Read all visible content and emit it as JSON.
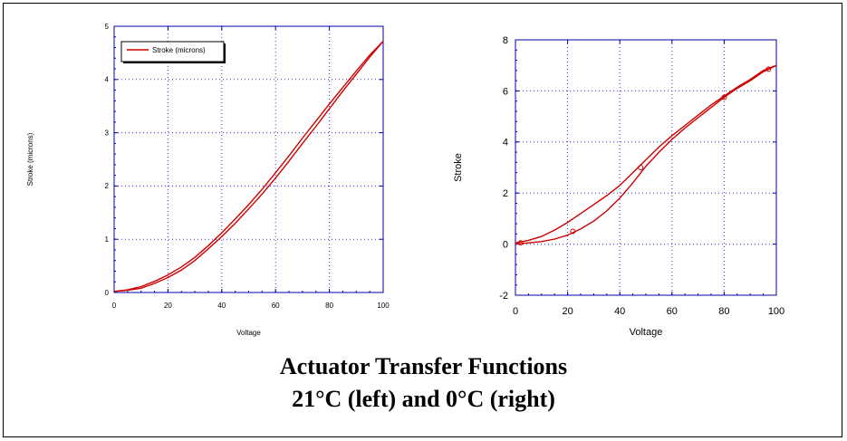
{
  "caption": {
    "line1": "Actuator Transfer Functions",
    "line2": "21°C (left) and 0°C (right)"
  },
  "colors": {
    "curve": "#cc0000",
    "grid": "#3333cc",
    "frame": "#0000aa"
  },
  "chart_data": [
    {
      "type": "line",
      "xlabel": "Voltage",
      "ylabel": "Stroke (microns)",
      "xlim": [
        0,
        100
      ],
      "ylim": [
        0,
        5
      ],
      "xticks": [
        "0",
        "20",
        "40",
        "60",
        "80",
        "100"
      ],
      "yticks": [
        "0",
        "1",
        "2",
        "3",
        "4",
        "5"
      ],
      "grid": true,
      "legend": {
        "position": "top-left",
        "entries": [
          "Stroke (microns)"
        ]
      },
      "series": [
        {
          "name": "Stroke (microns)",
          "marker": "none",
          "x": [
            0,
            5,
            10,
            15,
            20,
            25,
            30,
            35,
            40,
            45,
            50,
            55,
            60,
            65,
            70,
            75,
            80,
            85,
            90,
            95,
            100
          ],
          "y_up": [
            0.02,
            0.04,
            0.08,
            0.17,
            0.28,
            0.42,
            0.6,
            0.82,
            1.05,
            1.3,
            1.57,
            1.85,
            2.15,
            2.47,
            2.8,
            3.12,
            3.45,
            3.78,
            4.1,
            4.42,
            4.72
          ],
          "y_down": [
            0.02,
            0.05,
            0.11,
            0.21,
            0.33,
            0.48,
            0.66,
            0.88,
            1.12,
            1.38,
            1.65,
            1.94,
            2.25,
            2.57,
            2.9,
            3.22,
            3.54,
            3.85,
            4.16,
            4.46,
            4.72
          ]
        }
      ]
    },
    {
      "type": "line",
      "xlabel": "Voltage",
      "ylabel": "Stroke",
      "xlim": [
        0,
        100
      ],
      "ylim": [
        -2,
        8
      ],
      "xticks": [
        "0",
        "20",
        "40",
        "60",
        "80",
        "100"
      ],
      "yticks": [
        "-2",
        "0",
        "2",
        "4",
        "6",
        "8"
      ],
      "grid": true,
      "series": [
        {
          "marker": "circle",
          "x": [
            0,
            5,
            10,
            15,
            20,
            25,
            30,
            35,
            40,
            45,
            50,
            55,
            60,
            65,
            70,
            75,
            80,
            85,
            90,
            95,
            100
          ],
          "y_up": [
            0.0,
            0.05,
            0.1,
            0.2,
            0.35,
            0.6,
            0.9,
            1.3,
            1.8,
            2.4,
            3.05,
            3.6,
            4.1,
            4.55,
            4.95,
            5.35,
            5.75,
            6.1,
            6.4,
            6.75,
            7.0
          ],
          "y_down": [
            0.05,
            0.15,
            0.3,
            0.55,
            0.85,
            1.2,
            1.55,
            1.9,
            2.3,
            2.8,
            3.3,
            3.8,
            4.25,
            4.65,
            5.05,
            5.45,
            5.8,
            6.15,
            6.45,
            6.8,
            7.0
          ],
          "marker_x": [
            2,
            22,
            48,
            80,
            97
          ],
          "marker_y": [
            0.05,
            0.5,
            3.0,
            5.75,
            6.85
          ]
        }
      ]
    }
  ]
}
